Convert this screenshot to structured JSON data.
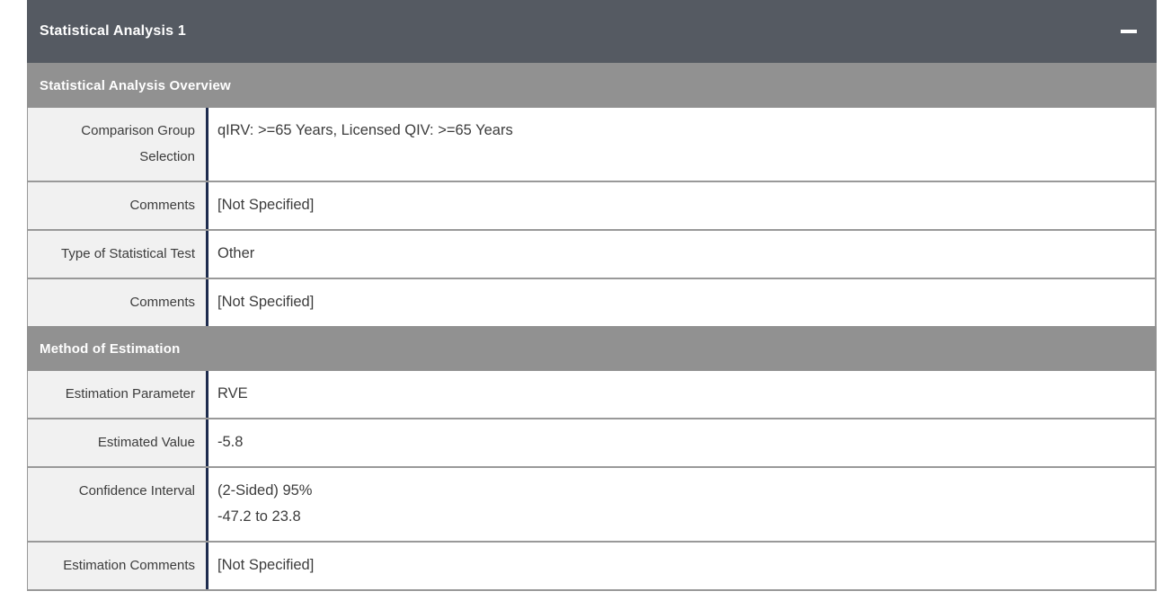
{
  "panel": {
    "title": "Statistical Analysis 1",
    "collapse_icon": "minus-icon"
  },
  "colors": {
    "header_bar": "#555a62",
    "section_bar": "#919191",
    "label_background": "#f1f1f1",
    "label_divider": "#1e2c4e",
    "grid_border": "#999999",
    "text": "#3c3c3c"
  },
  "sections": [
    {
      "header": "Statistical Analysis Overview",
      "rows": [
        {
          "label": "Comparison Group Selection",
          "values": [
            "qIRV: >=65 Years, Licensed QIV: >=65 Years"
          ]
        },
        {
          "label": "Comments",
          "values": [
            "[Not Specified]"
          ]
        },
        {
          "label": "Type of Statistical Test",
          "values": [
            "Other"
          ]
        },
        {
          "label": "Comments",
          "values": [
            "[Not Specified]"
          ]
        }
      ]
    },
    {
      "header": "Method of Estimation",
      "rows": [
        {
          "label": "Estimation Parameter",
          "values": [
            "RVE"
          ]
        },
        {
          "label": "Estimated Value",
          "values": [
            "-5.8"
          ]
        },
        {
          "label": "Confidence Interval",
          "values": [
            "(2-Sided) 95%",
            "-47.2 to 23.8"
          ]
        },
        {
          "label": "Estimation Comments",
          "values": [
            "[Not Specified]"
          ]
        }
      ]
    }
  ]
}
